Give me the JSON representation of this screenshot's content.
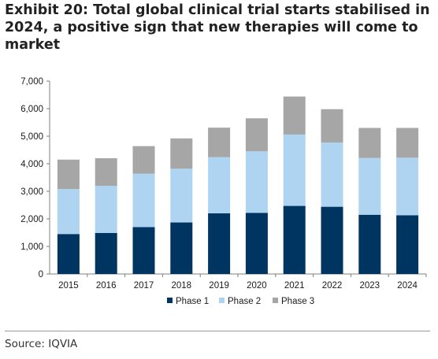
{
  "title": "Exhibit 20: Total global clinical trial starts stabilised in 2024, a positive sign that new therapies will come to market",
  "source": "Source: IQVIA",
  "chart_data": {
    "type": "bar",
    "stacked": true,
    "categories": [
      "2015",
      "2016",
      "2017",
      "2018",
      "2019",
      "2020",
      "2021",
      "2022",
      "2023",
      "2024"
    ],
    "series": [
      {
        "name": "Phase 1",
        "color": "#003461",
        "values": [
          1450,
          1490,
          1700,
          1870,
          2200,
          2220,
          2470,
          2440,
          2150,
          2130
        ]
      },
      {
        "name": "Phase 2",
        "color": "#aed4f2",
        "values": [
          1630,
          1710,
          1940,
          1950,
          2040,
          2230,
          2590,
          2330,
          2060,
          2090
        ]
      },
      {
        "name": "Phase 3",
        "color": "#a6a6a6",
        "values": [
          1070,
          1000,
          1000,
          1100,
          1070,
          1200,
          1380,
          1210,
          1090,
          1080
        ]
      }
    ],
    "ylim": [
      0,
      7000
    ],
    "yticks": [
      "0",
      "1,000",
      "2,000",
      "3,000",
      "4,000",
      "5,000",
      "6,000",
      "7,000"
    ],
    "grid": false,
    "legend_position": "bottom"
  }
}
